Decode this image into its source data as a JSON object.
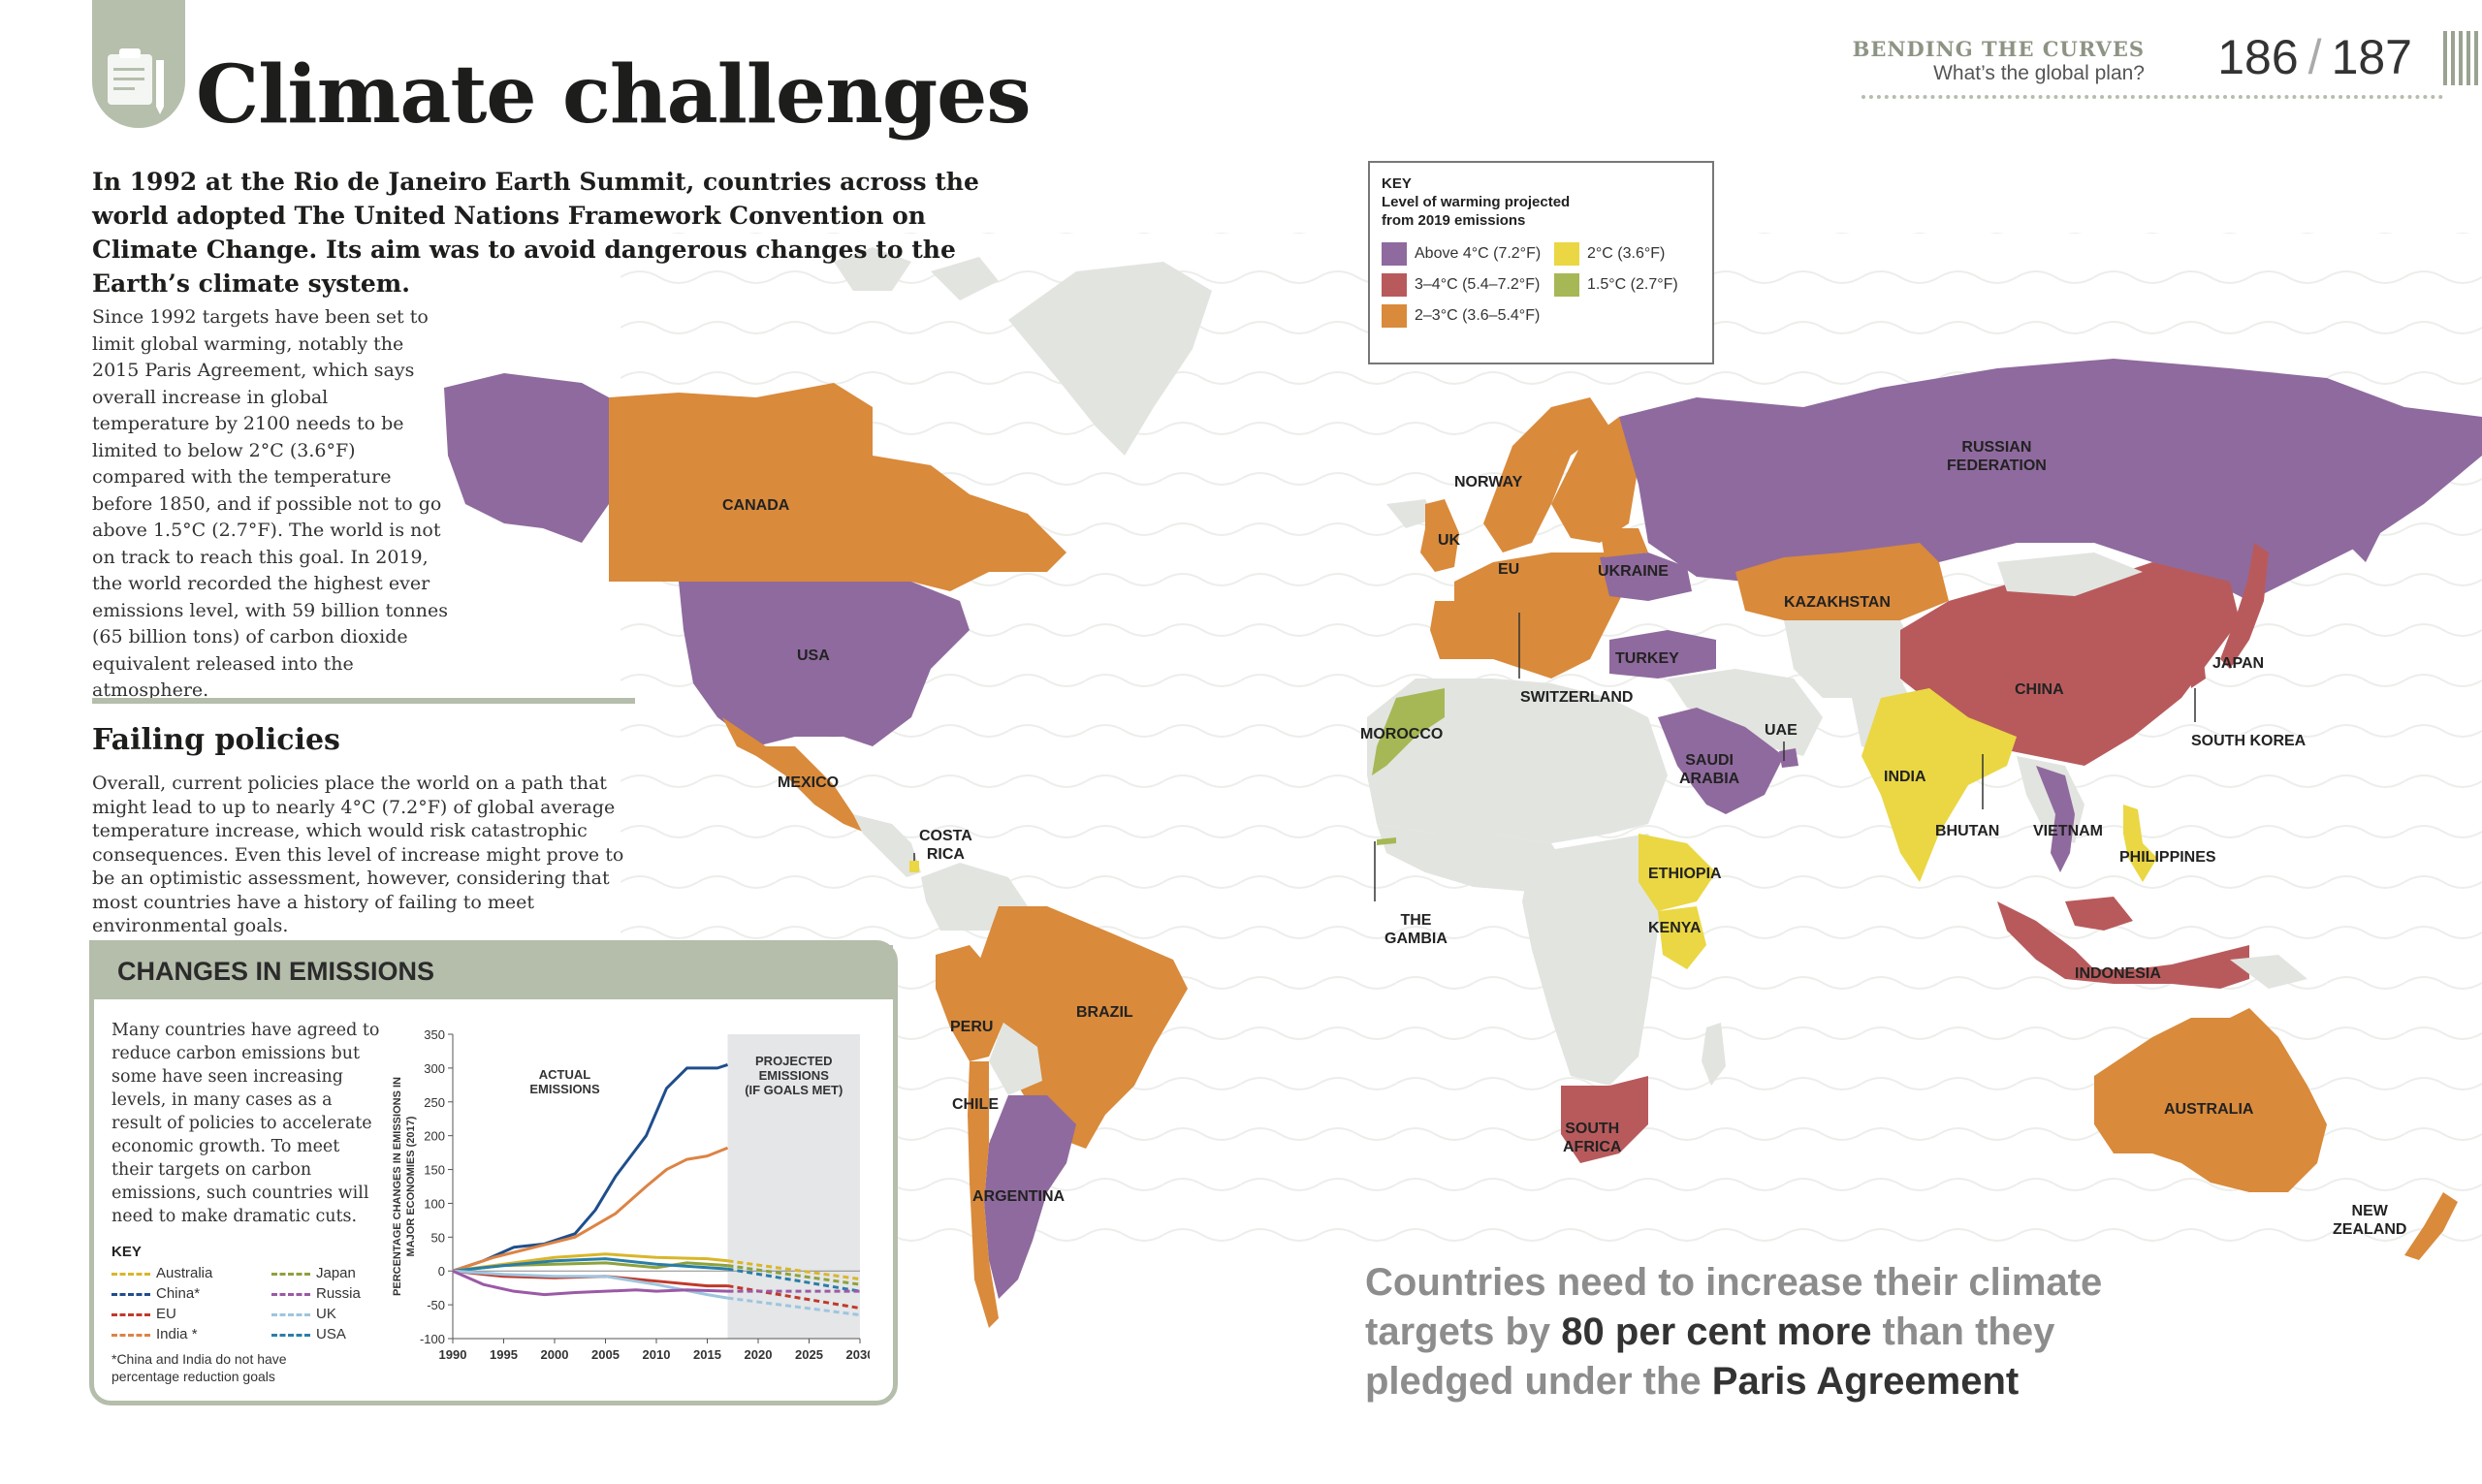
{
  "header": {
    "title": "Climate challenges",
    "section": "BENDING THE CURVES",
    "subsection": "What’s the global plan?",
    "page_left": "186",
    "page_right": "187"
  },
  "intro": "In 1992 at the Rio de Janeiro Earth Summit, countries across the world adopted The United Nations Framework Convention on Climate Change. Its aim was to avoid dangerous changes to the Earth’s climate system.",
  "body_text": "Since 1992 targets have been set to limit global warming, notably the 2015 Paris Agreement, which says overall increase in global temperature by 2100 needs to be limited to below 2°C (3.6°F) compared with the temperature before 1850, and if possible not to go above 1.5°C (2.7°F). The world is not on track to reach this goal. In 2019, the world recorded the highest ever emissions level, with 59 billion tonnes (65 billion tons) of carbon dioxide equivalent released into the atmosphere.",
  "failing": {
    "heading": "Failing policies",
    "text": "Overall, current policies place the world on a path that might lead to up to nearly 4°C (7.2°F) of global average temperature increase, which would risk catastrophic consequences. Even this level of increase might prove to be an optimistic assessment, however, considering that most countries have a history of failing to meet environmental goals."
  },
  "changes_box": {
    "title": "CHANGES IN EMISSIONS",
    "text": "Many countries have agreed to reduce carbon emissions but some have seen increasing levels, in many cases as a result of policies to accelerate economic growth. To meet their targets on carbon emissions, such countries will need to make dramatic cuts.",
    "key_title": "KEY",
    "key_items": [
      {
        "label": "Australia",
        "color": "#d9b62a"
      },
      {
        "label": "China*",
        "color": "#1f4e8c"
      },
      {
        "label": "EU",
        "color": "#c0392b"
      },
      {
        "label": "India *",
        "color": "#dd8344"
      },
      {
        "label": "Japan",
        "color": "#8ea23c"
      },
      {
        "label": "Russia",
        "color": "#9b59a6"
      },
      {
        "label": "UK",
        "color": "#9ec5df"
      },
      {
        "label": "USA",
        "color": "#2a7ea6"
      }
    ],
    "note": "*China and India do not have percentage reduction goals"
  },
  "chart_data": {
    "type": "line",
    "title": "",
    "xlabel": "",
    "ylabel": "PERCENTAGE CHANGES IN EMISSIONS IN MAJOR ECONOMIES (2017)",
    "xlim": [
      1990,
      2030
    ],
    "ylim": [
      -100,
      350
    ],
    "x_ticks": [
      1990,
      1995,
      2000,
      2005,
      2010,
      2015,
      2020,
      2025,
      2030
    ],
    "y_ticks": [
      -100,
      -50,
      0,
      50,
      100,
      150,
      200,
      250,
      300,
      350
    ],
    "annotations": [
      "ACTUAL EMISSIONS",
      "PROJECTED EMISSIONS (IF GOALS MET)"
    ],
    "projection_start": 2017,
    "series": [
      {
        "name": "China",
        "color": "#1f4e8c",
        "actual": [
          [
            1990,
            0
          ],
          [
            1993,
            15
          ],
          [
            1996,
            35
          ],
          [
            1999,
            40
          ],
          [
            2002,
            55
          ],
          [
            2004,
            90
          ],
          [
            2006,
            140
          ],
          [
            2008,
            180
          ],
          [
            2009,
            200
          ],
          [
            2011,
            270
          ],
          [
            2013,
            300
          ],
          [
            2016,
            300
          ],
          [
            2017,
            305
          ]
        ],
        "projected": []
      },
      {
        "name": "India",
        "color": "#dd8344",
        "actual": [
          [
            1990,
            0
          ],
          [
            1994,
            20
          ],
          [
            1998,
            35
          ],
          [
            2002,
            50
          ],
          [
            2006,
            85
          ],
          [
            2009,
            125
          ],
          [
            2011,
            150
          ],
          [
            2013,
            165
          ],
          [
            2015,
            170
          ],
          [
            2017,
            182
          ]
        ],
        "projected": []
      },
      {
        "name": "Australia",
        "color": "#d9b62a",
        "actual": [
          [
            1990,
            0
          ],
          [
            1995,
            10
          ],
          [
            2000,
            20
          ],
          [
            2005,
            25
          ],
          [
            2010,
            20
          ],
          [
            2015,
            18
          ],
          [
            2017,
            15
          ]
        ],
        "projected": [
          [
            2017,
            15
          ],
          [
            2030,
            -12
          ]
        ]
      },
      {
        "name": "Japan",
        "color": "#8ea23c",
        "actual": [
          [
            1990,
            0
          ],
          [
            1995,
            8
          ],
          [
            2000,
            10
          ],
          [
            2005,
            12
          ],
          [
            2010,
            5
          ],
          [
            2013,
            12
          ],
          [
            2017,
            8
          ]
        ],
        "projected": [
          [
            2017,
            8
          ],
          [
            2030,
            -20
          ]
        ]
      },
      {
        "name": "USA",
        "color": "#2a7ea6",
        "actual": [
          [
            1990,
            0
          ],
          [
            1995,
            8
          ],
          [
            2000,
            15
          ],
          [
            2005,
            18
          ],
          [
            2010,
            10
          ],
          [
            2015,
            5
          ],
          [
            2017,
            3
          ]
        ],
        "projected": [
          [
            2017,
            3
          ],
          [
            2030,
            -30
          ]
        ]
      },
      {
        "name": "EU",
        "color": "#c0392b",
        "actual": [
          [
            1990,
            0
          ],
          [
            1995,
            -8
          ],
          [
            2000,
            -10
          ],
          [
            2005,
            -8
          ],
          [
            2010,
            -15
          ],
          [
            2015,
            -22
          ],
          [
            2017,
            -22
          ]
        ],
        "projected": [
          [
            2017,
            -22
          ],
          [
            2030,
            -55
          ]
        ]
      },
      {
        "name": "UK",
        "color": "#9ec5df",
        "actual": [
          [
            1990,
            0
          ],
          [
            1995,
            -5
          ],
          [
            2000,
            -8
          ],
          [
            2005,
            -8
          ],
          [
            2010,
            -20
          ],
          [
            2015,
            -35
          ],
          [
            2017,
            -40
          ]
        ],
        "projected": [
          [
            2017,
            -40
          ],
          [
            2030,
            -65
          ]
        ]
      },
      {
        "name": "Russia",
        "color": "#9b59a6",
        "actual": [
          [
            1990,
            0
          ],
          [
            1993,
            -20
          ],
          [
            1996,
            -30
          ],
          [
            1999,
            -35
          ],
          [
            2002,
            -32
          ],
          [
            2005,
            -30
          ],
          [
            2008,
            -28
          ],
          [
            2010,
            -30
          ],
          [
            2013,
            -28
          ],
          [
            2017,
            -30
          ]
        ],
        "projected": [
          [
            2017,
            -30
          ],
          [
            2030,
            -30
          ]
        ]
      }
    ]
  },
  "key": {
    "title_line1": "KEY",
    "title_line2": "Level of warming projected",
    "title_line3": "from 2019 emissions",
    "items": [
      {
        "label": "Above 4°C (7.2°F)",
        "color": "#8f6a9e"
      },
      {
        "label": "3–4°C (5.4–7.2°F)",
        "color": "#b85a5c"
      },
      {
        "label": "2–3°C (3.6–5.4°F)",
        "color": "#d98a3b"
      },
      {
        "label": "2°C (3.6°F)",
        "color": "#ead743"
      },
      {
        "label": "1.5°C (2.7°F)",
        "color": "#a6b855"
      }
    ]
  },
  "map_colors": {
    "above4": "#8f6a9e",
    "c3to4": "#b85a5c",
    "c2to3": "#d98a3b",
    "c2": "#ead743",
    "c15": "#a6b855",
    "nodata": "#e2e4e0"
  },
  "countries": {
    "canada": "CANADA",
    "usa": "USA",
    "mexico": "MEXICO",
    "costa_rica_1": "COSTA",
    "costa_rica_2": "RICA",
    "brazil": "BRAZIL",
    "peru": "PERU",
    "chile": "CHILE",
    "argentina": "ARGENTINA",
    "norway": "NORWAY",
    "uk": "UK",
    "eu": "EU",
    "ukraine": "UKRAINE",
    "switzerland": "SWITZERLAND",
    "morocco": "MOROCCO",
    "the_gambia_1": "THE",
    "the_gambia_2": "GAMBIA",
    "turkey": "TURKEY",
    "uae": "UAE",
    "saudi_1": "SAUDI",
    "saudi_2": "ARABIA",
    "ethiopia": "ETHIOPIA",
    "kenya": "KENYA",
    "south_africa_1": "SOUTH",
    "south_africa_2": "AFRICA",
    "russia_1": "RUSSIAN",
    "russia_2": "FEDERATION",
    "kazakhstan": "KAZAKHSTAN",
    "china": "CHINA",
    "india": "INDIA",
    "bhutan": "BHUTAN",
    "vietnam": "VIETNAM",
    "japan": "JAPAN",
    "south_korea": "SOUTH KOREA",
    "philippines": "PHILIPPINES",
    "indonesia": "INDONESIA",
    "australia": "AUSTRALIA",
    "nz_1": "NEW",
    "nz_2": "ZEALAND"
  },
  "quote": {
    "part1": "Countries need to increase their climate targets by ",
    "bold1": "80 per cent more",
    "part2": " than they pledged under the ",
    "bold2": "Paris Agreement"
  }
}
